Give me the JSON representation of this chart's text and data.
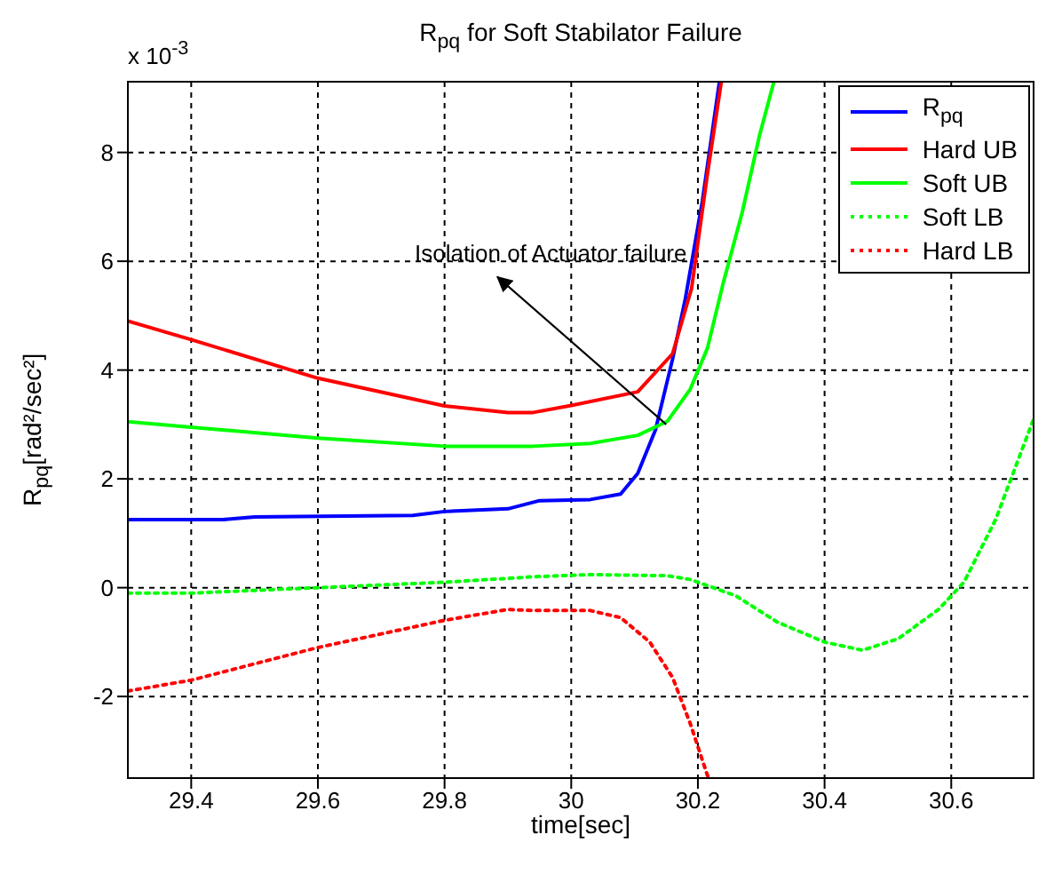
{
  "chart_data": {
    "type": "line",
    "title": "R$_{pq}$ for Soft Stabilator Failure",
    "xlabel": "time[sec]",
    "ylabel": "R$_{pq}$[rad²/sec²]",
    "annotations": [
      "x 10$^{-3}$",
      {
        "text": "Isolation of Actuator failure",
        "x": 30.15,
        "y": 3.0
      }
    ],
    "xlim": [
      29.3,
      30.73
    ],
    "xticks": [
      29.4,
      29.6,
      29.8,
      30,
      30.2,
      30.4,
      30.6
    ],
    "ylim": [
      -3.5,
      9.3
    ],
    "yticks": [
      -2,
      0,
      2,
      4,
      6,
      8
    ],
    "grid": true,
    "legend": "top right",
    "series": [
      {
        "name": "R$_{pq}$",
        "color": "#0000ff",
        "line_style": "solid",
        "x": [
          29.3,
          29.45,
          29.5,
          29.75,
          29.8,
          29.9,
          29.95,
          30.03,
          30.078,
          30.105,
          30.133,
          30.16,
          30.18,
          30.207,
          30.234
        ],
        "values": [
          1.25,
          1.25,
          1.3,
          1.33,
          1.4,
          1.45,
          1.6,
          1.62,
          1.72,
          2.1,
          2.9,
          4.2,
          5.3,
          7.1,
          9.3
        ]
      },
      {
        "name": "Hard UB",
        "color": "#ff0000",
        "line_style": "solid",
        "x": [
          29.3,
          29.4,
          29.6,
          29.8,
          29.9,
          29.94,
          30.0,
          30.105,
          30.16,
          30.19,
          30.215,
          30.237
        ],
        "values": [
          4.9,
          4.56,
          3.85,
          3.34,
          3.22,
          3.22,
          3.35,
          3.6,
          4.3,
          5.5,
          7.6,
          9.3
        ]
      },
      {
        "name": "Soft UB",
        "color": "#00ff00",
        "line_style": "solid",
        "x": [
          29.3,
          29.4,
          29.6,
          29.8,
          29.94,
          30.03,
          30.105,
          30.152,
          30.188,
          30.215,
          30.24,
          30.27,
          30.297,
          30.32
        ],
        "values": [
          3.05,
          2.95,
          2.75,
          2.6,
          2.6,
          2.65,
          2.8,
          3.06,
          3.65,
          4.4,
          5.6,
          6.9,
          8.3,
          9.3
        ]
      },
      {
        "name": "Soft LB",
        "color": "#00ff00",
        "line_style": "dotted",
        "x": [
          29.3,
          29.4,
          29.6,
          29.8,
          29.94,
          30.03,
          30.152,
          30.188,
          30.26,
          30.325,
          30.4,
          30.46,
          30.516,
          30.58,
          30.62,
          30.67,
          30.73
        ],
        "values": [
          -0.1,
          -0.1,
          0.0,
          0.1,
          0.2,
          0.24,
          0.22,
          0.15,
          -0.15,
          -0.63,
          -1.0,
          -1.15,
          -0.94,
          -0.4,
          0.1,
          1.25,
          3.1
        ]
      },
      {
        "name": "Hard LB",
        "color": "#ff0000",
        "line_style": "dotted",
        "x": [
          29.3,
          29.4,
          29.6,
          29.8,
          29.9,
          29.94,
          30.03,
          30.078,
          30.124,
          30.16,
          30.188,
          30.215,
          30.217
        ],
        "values": [
          -1.9,
          -1.7,
          -1.1,
          -0.6,
          -0.4,
          -0.42,
          -0.42,
          -0.55,
          -1.0,
          -1.65,
          -2.5,
          -3.45,
          -3.5
        ]
      }
    ]
  }
}
